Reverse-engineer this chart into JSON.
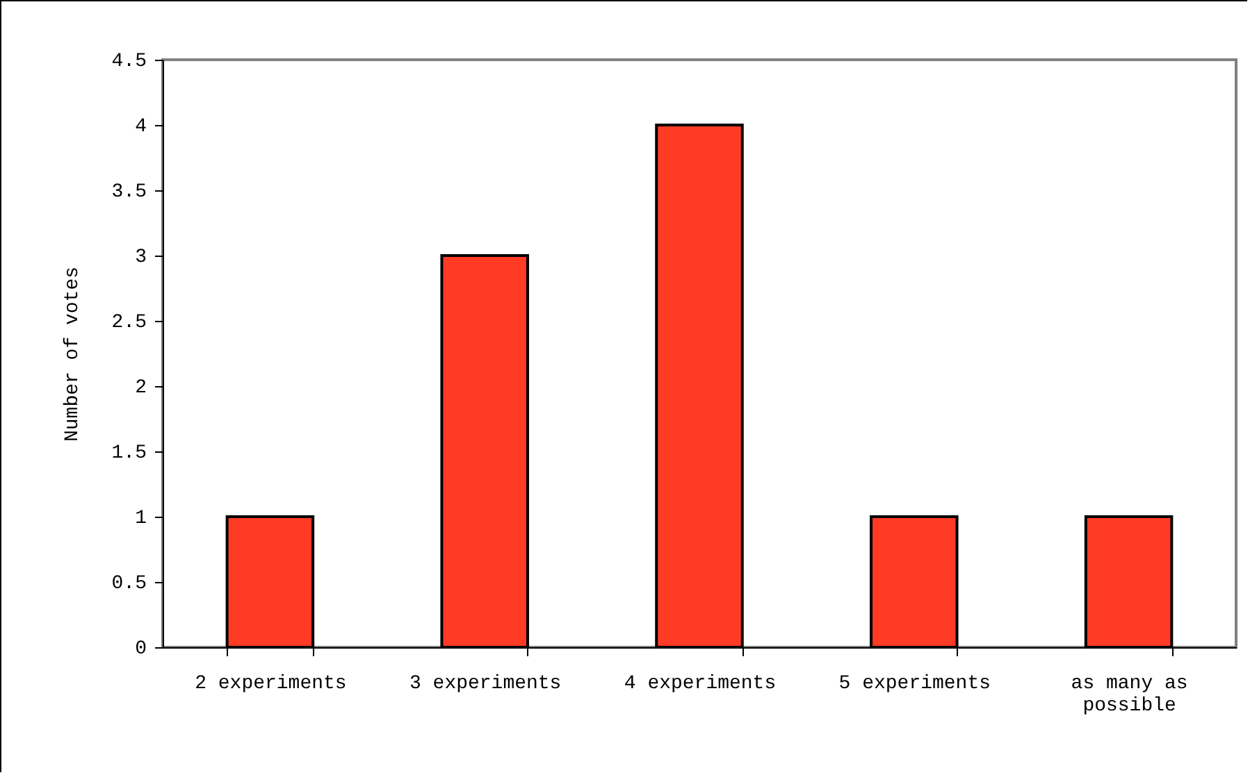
{
  "chart_data": {
    "type": "bar",
    "ylabel": "Number of votes",
    "categories": [
      "2 experiments",
      "3 experiments",
      "4 experiments",
      "5 experiments",
      "as many as possible"
    ],
    "values": [
      1,
      3,
      4,
      1,
      1
    ],
    "color": "#ff3b25",
    "ylim": [
      0,
      4.5
    ],
    "yticks": [
      0,
      0.5,
      1,
      1.5,
      2,
      2.5,
      3,
      3.5,
      4,
      4.5
    ],
    "grid": false
  }
}
